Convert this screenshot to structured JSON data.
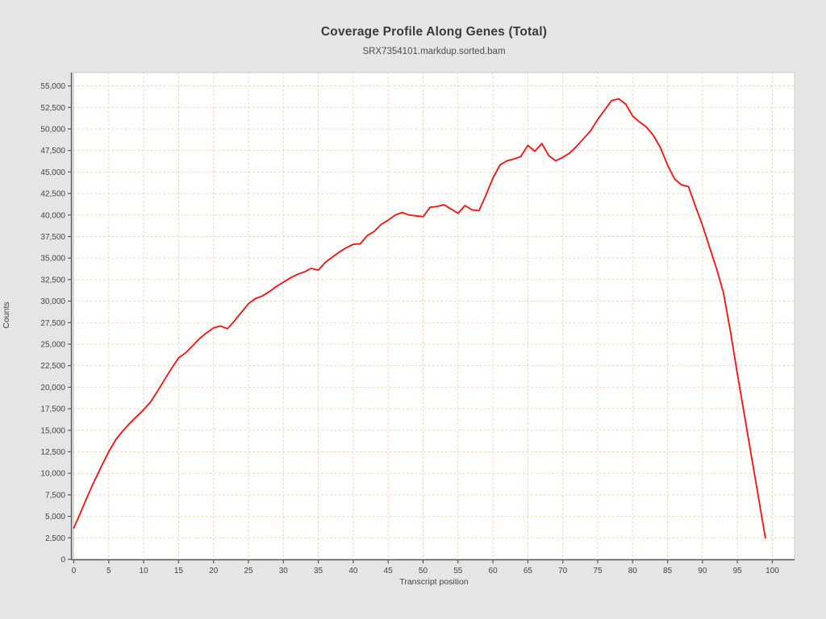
{
  "window": {
    "background_color": "#e5e5e5",
    "plot_background_color": "#ffffff"
  },
  "chart_data": {
    "type": "line",
    "title": "Coverage Profile Along Genes (Total)",
    "subtitle": "SRX7354101.markdup.sorted.bam",
    "xlabel": "Transcript position",
    "ylabel": "Counts",
    "grid": true,
    "grid_color": "#f8cfab",
    "axis_color": "#5a5a5a",
    "legend": "none",
    "xlim": [
      -0.06,
      103.18
    ],
    "ylim": [
      0,
      56550
    ],
    "x_ticks": [
      0,
      5,
      10,
      15,
      20,
      25,
      30,
      35,
      40,
      45,
      50,
      55,
      60,
      65,
      70,
      75,
      80,
      85,
      90,
      95,
      100
    ],
    "y_ticks": [
      0,
      2500,
      5000,
      7500,
      10000,
      12500,
      15000,
      17500,
      20000,
      22500,
      25000,
      27500,
      30000,
      32500,
      35000,
      37500,
      40000,
      42500,
      45000,
      47500,
      50000,
      52500,
      55000
    ],
    "series": [
      {
        "name": "SRX7354101.markdup.sorted.bam",
        "color": "#fb0e0e",
        "x_note": "x = transcript position index 0..99",
        "values": [
          3650,
          5500,
          7400,
          9200,
          10900,
          12500,
          13900,
          14900,
          15800,
          16600,
          17400,
          18300,
          19550,
          20900,
          22200,
          23400,
          24000,
          24800,
          25650,
          26300,
          26900,
          27100,
          26800,
          27700,
          28700,
          29700,
          30300,
          30600,
          31100,
          31700,
          32200,
          32700,
          33100,
          33400,
          33800,
          33600,
          34500,
          35100,
          35700,
          36200,
          36600,
          36650,
          37600,
          38100,
          38900,
          39400,
          40000,
          40300,
          40000,
          39900,
          39800,
          40900,
          41000,
          41200,
          40700,
          40200,
          41100,
          40600,
          40500,
          42300,
          44300,
          45800,
          46300,
          46500,
          46800,
          48100,
          47400,
          48300,
          46900,
          46300,
          46700,
          47200,
          48000,
          48900,
          49800,
          51100,
          52200,
          53300,
          53500,
          52900,
          51500,
          50800,
          50200,
          49200,
          47800,
          45800,
          44200,
          43500,
          43300,
          41000,
          38800,
          36300,
          33800,
          31000,
          26500,
          21500,
          16800,
          12000,
          7300,
          2500
        ]
      }
    ]
  }
}
